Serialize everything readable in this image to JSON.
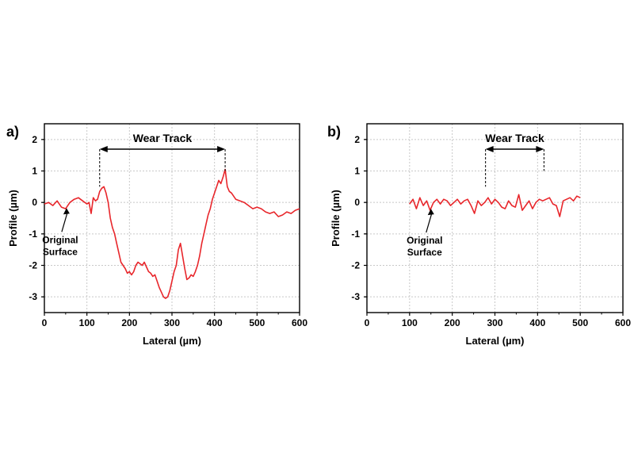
{
  "colors": {
    "series": "#e8262b",
    "axis": "#000000",
    "grid": "#c8c8c8"
  },
  "chart_data": [
    {
      "type": "line",
      "panel_label": "a)",
      "xlabel": "Lateral (µm)",
      "ylabel": "Profile (µm)",
      "xlim": [
        0,
        600
      ],
      "ylim": [
        -3.5,
        2.5
      ],
      "xticks": [
        0,
        100,
        200,
        300,
        400,
        500,
        600
      ],
      "yticks": [
        -3,
        -2,
        -1,
        0,
        1,
        2
      ],
      "grid": true,
      "wear_track": {
        "label": "Wear Track",
        "x_start": 130,
        "x_end": 425
      },
      "annotation": {
        "line1": "Original",
        "line2": "Surface",
        "arrow_to": [
          52,
          -0.18
        ]
      },
      "series": [
        {
          "x": [
            0,
            10,
            20,
            30,
            40,
            50,
            60,
            70,
            80,
            90,
            100,
            105,
            110,
            115,
            120,
            125,
            130,
            135,
            140,
            145,
            150,
            155,
            160,
            165,
            170,
            175,
            180,
            185,
            190,
            195,
            200,
            205,
            210,
            215,
            220,
            225,
            230,
            235,
            240,
            245,
            250,
            255,
            260,
            265,
            270,
            275,
            280,
            285,
            290,
            295,
            300,
            305,
            310,
            315,
            320,
            325,
            330,
            335,
            340,
            345,
            350,
            355,
            360,
            365,
            370,
            375,
            380,
            385,
            390,
            395,
            400,
            405,
            410,
            415,
            420,
            425,
            430,
            435,
            440,
            450,
            460,
            470,
            480,
            490,
            500,
            510,
            520,
            530,
            540,
            550,
            560,
            570,
            580,
            590,
            600
          ],
          "y": [
            -0.05,
            0.0,
            -0.1,
            0.05,
            -0.15,
            -0.2,
            0.0,
            0.1,
            0.15,
            0.05,
            -0.05,
            0.0,
            -0.35,
            0.15,
            0.05,
            0.1,
            0.35,
            0.45,
            0.5,
            0.3,
            0.0,
            -0.5,
            -0.8,
            -1.0,
            -1.3,
            -1.6,
            -1.9,
            -2.0,
            -2.1,
            -2.25,
            -2.2,
            -2.3,
            -2.2,
            -2.0,
            -1.9,
            -1.95,
            -2.0,
            -1.9,
            -2.05,
            -2.2,
            -2.25,
            -2.35,
            -2.3,
            -2.5,
            -2.7,
            -2.85,
            -3.0,
            -3.05,
            -3.0,
            -2.8,
            -2.5,
            -2.2,
            -2.0,
            -1.5,
            -1.3,
            -1.7,
            -2.1,
            -2.45,
            -2.4,
            -2.3,
            -2.35,
            -2.2,
            -2.0,
            -1.7,
            -1.3,
            -1.0,
            -0.7,
            -0.4,
            -0.2,
            0.1,
            0.3,
            0.5,
            0.7,
            0.6,
            0.8,
            1.05,
            0.5,
            0.35,
            0.3,
            0.1,
            0.05,
            0.0,
            -0.1,
            -0.2,
            -0.15,
            -0.2,
            -0.3,
            -0.35,
            -0.3,
            -0.45,
            -0.4,
            -0.3,
            -0.35,
            -0.25,
            -0.2
          ]
        }
      ]
    },
    {
      "type": "line",
      "panel_label": "b)",
      "xlabel": "Lateral (µm)",
      "ylabel": "Profile (µm)",
      "xlim": [
        0,
        600
      ],
      "ylim": [
        -3.5,
        2.5
      ],
      "xticks": [
        0,
        100,
        200,
        300,
        400,
        500,
        600
      ],
      "yticks": [
        -3,
        -2,
        -1,
        0,
        1,
        2
      ],
      "grid": true,
      "wear_track": {
        "label": "Wear Track",
        "x_start": 278,
        "x_end": 415
      },
      "annotation": {
        "line1": "Original",
        "line2": "Surface",
        "arrow_to": [
          150,
          -0.2
        ]
      },
      "series": [
        {
          "x": [
            100,
            108,
            116,
            124,
            132,
            140,
            148,
            156,
            164,
            172,
            180,
            188,
            196,
            204,
            212,
            220,
            228,
            236,
            244,
            252,
            260,
            268,
            276,
            284,
            292,
            300,
            308,
            316,
            324,
            332,
            340,
            348,
            356,
            364,
            372,
            380,
            388,
            396,
            404,
            412,
            420,
            428,
            436,
            444,
            452,
            460,
            468,
            476,
            484,
            492,
            500
          ],
          "y": [
            -0.05,
            0.1,
            -0.2,
            0.15,
            -0.1,
            0.05,
            -0.25,
            0.0,
            0.1,
            -0.05,
            0.1,
            0.05,
            -0.1,
            0.0,
            0.1,
            -0.05,
            0.05,
            0.1,
            -0.1,
            -0.35,
            0.05,
            -0.1,
            0.0,
            0.15,
            -0.05,
            0.1,
            0.0,
            -0.15,
            -0.2,
            0.05,
            -0.1,
            -0.15,
            0.25,
            -0.25,
            -0.1,
            0.05,
            -0.2,
            0.0,
            0.1,
            0.05,
            0.1,
            0.15,
            -0.05,
            -0.1,
            -0.45,
            0.05,
            0.1,
            0.15,
            0.05,
            0.2,
            0.15
          ]
        }
      ]
    }
  ]
}
